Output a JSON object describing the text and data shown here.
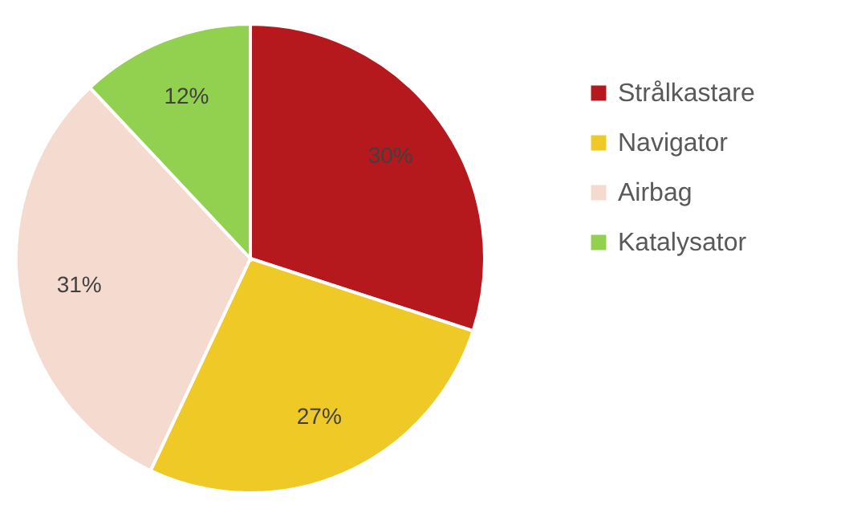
{
  "chart_data": {
    "type": "pie",
    "categories": [
      "Strålkastare",
      "Navigator",
      "Airbag",
      "Katalysator"
    ],
    "values": [
      30,
      27,
      31,
      12
    ],
    "colors": [
      "#b5191e",
      "#efc925",
      "#f5dad0",
      "#92d050"
    ],
    "value_labels": [
      "30%",
      "27%",
      "31%",
      "12%"
    ],
    "legend": "right"
  }
}
